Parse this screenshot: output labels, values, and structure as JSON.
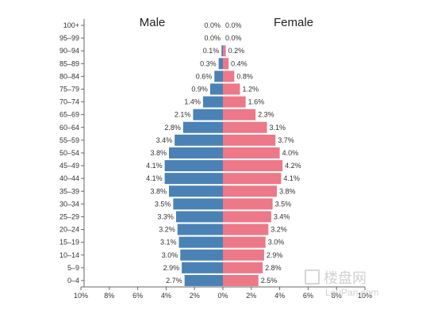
{
  "chart_data": {
    "type": "bar",
    "orientation": "horizontal-pyramid",
    "categories": [
      "0–4",
      "5–9",
      "10–14",
      "15–19",
      "20–24",
      "25–29",
      "30–34",
      "35–39",
      "40–44",
      "45–49",
      "50–54",
      "55–59",
      "60–64",
      "65–69",
      "70–74",
      "75–79",
      "80–84",
      "85–89",
      "90–94",
      "95–99",
      "100+"
    ],
    "series": [
      {
        "name": "Male",
        "side": "left",
        "color": "#4a82b6",
        "values": [
          2.7,
          2.9,
          3.0,
          3.1,
          3.2,
          3.3,
          3.5,
          3.8,
          4.1,
          4.1,
          3.8,
          3.4,
          2.8,
          2.1,
          1.4,
          0.9,
          0.6,
          0.3,
          0.1,
          0.0,
          0.0
        ]
      },
      {
        "name": "Female",
        "side": "right",
        "color": "#ec7888",
        "values": [
          2.5,
          2.8,
          2.9,
          3.0,
          3.2,
          3.4,
          3.5,
          3.8,
          4.1,
          4.2,
          4.0,
          3.7,
          3.1,
          2.3,
          1.6,
          1.2,
          0.8,
          0.4,
          0.2,
          0.0,
          0.0
        ]
      }
    ],
    "value_labels_male": [
      "2.7%",
      "2.9%",
      "3.0%",
      "3.1%",
      "3.2%",
      "3.3%",
      "3.5%",
      "3.8%",
      "4.1%",
      "4.1%",
      "3.8%",
      "3.4%",
      "2.8%",
      "2.1%",
      "1.4%",
      "0.9%",
      "0.6%",
      "0.3%",
      "0.1%",
      "0.0%",
      "0.0%"
    ],
    "value_labels_female": [
      "2.5%",
      "2.8%",
      "2.9%",
      "3.0%",
      "3.2%",
      "3.4%",
      "3.5%",
      "3.8%",
      "4.1%",
      "4.2%",
      "4.0%",
      "3.7%",
      "3.1%",
      "2.3%",
      "1.6%",
      "1.2%",
      "0.8%",
      "0.4%",
      "0.2%",
      "0.0%",
      "0.0%"
    ],
    "x_ticks": [
      -10,
      -8,
      -6,
      -4,
      -2,
      0,
      2,
      4,
      6,
      8,
      10
    ],
    "x_tick_labels": [
      "10%",
      "8%",
      "6%",
      "4%",
      "2%",
      "0%",
      "2%",
      "4%",
      "6%",
      "8%",
      "10%"
    ],
    "xlim": [
      -10,
      10
    ],
    "grid": false,
    "title": "",
    "xlabel": "",
    "ylabel": ""
  },
  "watermark": {
    "cn": "楼盘网",
    "en": "LouPan.com"
  }
}
